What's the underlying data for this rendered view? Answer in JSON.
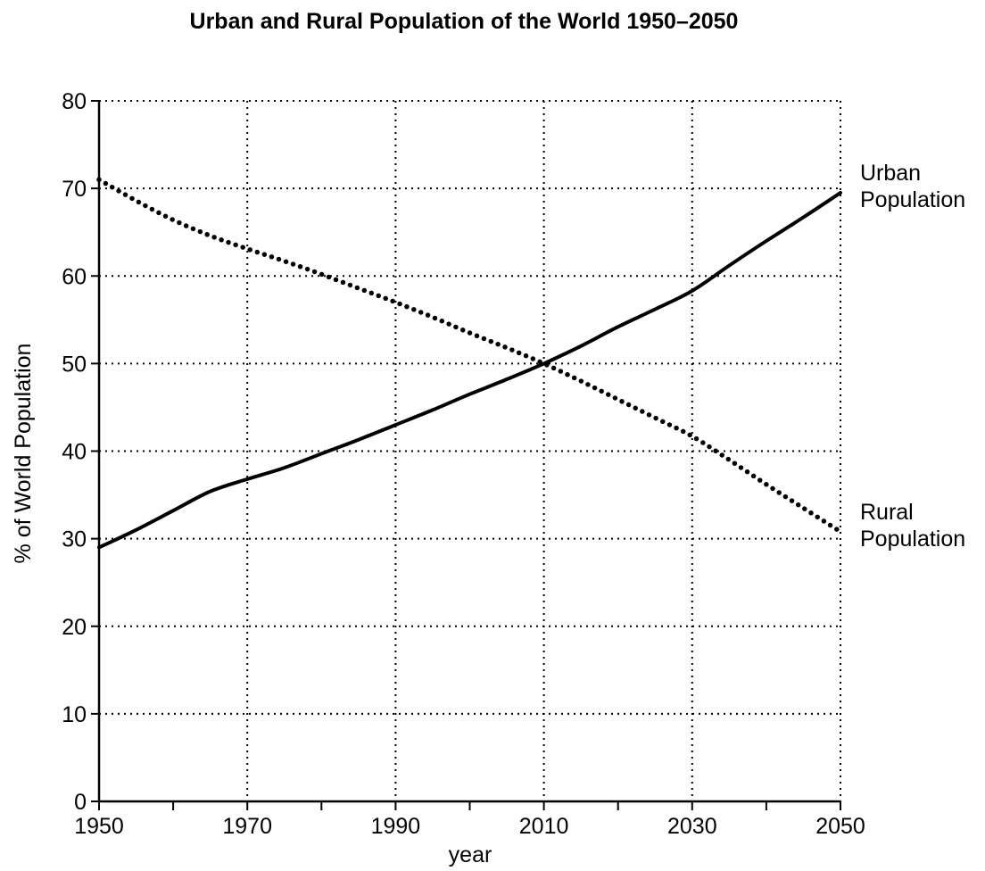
{
  "chart_data": {
    "type": "line",
    "title": "Urban and Rural Population of the World 1950–2050",
    "xlabel": "year",
    "ylabel": "% of World Population",
    "xlim": [
      1950,
      2050
    ],
    "ylim": [
      0,
      80
    ],
    "x_ticks": [
      1950,
      1960,
      1970,
      1980,
      1990,
      2000,
      2010,
      2020,
      2030,
      2040,
      2050
    ],
    "x_tick_labels": [
      "1950",
      "1970",
      "1990",
      "2010",
      "2030",
      "2050"
    ],
    "y_ticks": [
      0,
      10,
      20,
      30,
      40,
      50,
      60,
      70,
      80
    ],
    "y_tick_labels": [
      "0",
      "10",
      "20",
      "30",
      "40",
      "50",
      "60",
      "70",
      "80"
    ],
    "grid": true,
    "series": [
      {
        "name": "Urban Population",
        "label_lines": [
          "Urban",
          "Population"
        ],
        "style": "solid",
        "x": [
          1950,
          1955,
          1960,
          1965,
          1970,
          1975,
          1980,
          1985,
          1990,
          1995,
          2000,
          2005,
          2010,
          2015,
          2020,
          2025,
          2030,
          2035,
          2040,
          2045,
          2050
        ],
        "values": [
          29,
          31,
          33.2,
          35.4,
          36.8,
          38.1,
          39.7,
          41.3,
          43,
          44.7,
          46.5,
          48.2,
          50,
          52,
          54.2,
          56.2,
          58.3,
          61.2,
          64,
          66.7,
          69.5
        ]
      },
      {
        "name": "Rural Population",
        "label_lines": [
          "Rural",
          "Population"
        ],
        "style": "dotted",
        "x": [
          1950,
          1955,
          1960,
          1965,
          1970,
          1975,
          1980,
          1985,
          1990,
          1995,
          2000,
          2005,
          2010,
          2015,
          2020,
          2025,
          2030,
          2035,
          2040,
          2045,
          2050
        ],
        "values": [
          71,
          68.6,
          66.4,
          64.6,
          63.1,
          61.7,
          60.2,
          58.6,
          57,
          55.3,
          53.5,
          51.8,
          50,
          48,
          45.9,
          43.8,
          41.7,
          39,
          36.2,
          33.5,
          30.8
        ]
      }
    ]
  }
}
